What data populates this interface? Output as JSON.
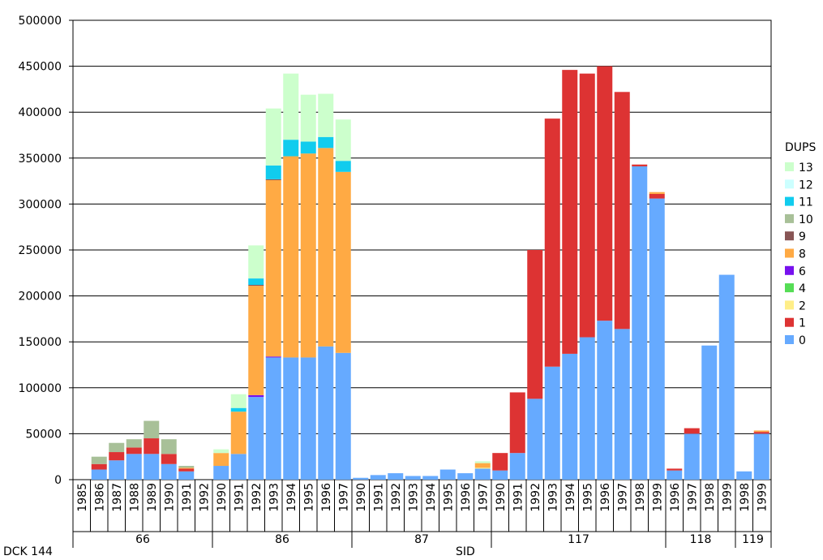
{
  "chart_data": {
    "type": "bar",
    "stacked": true,
    "ylim": [
      0,
      500000
    ],
    "yticks": [
      0,
      50000,
      100000,
      150000,
      200000,
      250000,
      300000,
      350000,
      400000,
      450000,
      500000
    ],
    "grid": true,
    "xlabel_left": "DCK 144",
    "xlabel_center": "SID",
    "legend_title": "DUPS",
    "legend_position": "right",
    "series": [
      {
        "name": "0",
        "color": "#66aaff"
      },
      {
        "name": "1",
        "color": "#dd3333"
      },
      {
        "name": "2",
        "color": "#ffee88"
      },
      {
        "name": "4",
        "color": "#55dd55"
      },
      {
        "name": "6",
        "color": "#7711ee"
      },
      {
        "name": "8",
        "color": "#ffaa44"
      },
      {
        "name": "9",
        "color": "#885555"
      },
      {
        "name": "10",
        "color": "#a8c098"
      },
      {
        "name": "11",
        "color": "#11ccee"
      },
      {
        "name": "12",
        "color": "#ccffff"
      },
      {
        "name": "13",
        "color": "#ccffcc"
      }
    ],
    "groups": [
      {
        "label": "66",
        "bars": [
          {
            "year": "1985",
            "values": {}
          },
          {
            "year": "1986",
            "values": {
              "0": 11000,
              "1": 6000,
              "10": 8000
            }
          },
          {
            "year": "1987",
            "values": {
              "0": 21000,
              "1": 9000,
              "10": 10000
            }
          },
          {
            "year": "1988",
            "values": {
              "0": 28000,
              "1": 7000,
              "10": 9000
            }
          },
          {
            "year": "1989",
            "values": {
              "0": 28000,
              "1": 17000,
              "10": 19000
            }
          },
          {
            "year": "1990",
            "values": {
              "0": 17000,
              "1": 11000,
              "10": 16000
            }
          },
          {
            "year": "1991",
            "values": {
              "0": 9000,
              "1": 3000,
              "8": 1000,
              "10": 2000
            }
          },
          {
            "year": "1992",
            "values": {}
          }
        ]
      },
      {
        "label": "86",
        "bars": [
          {
            "year": "1990",
            "values": {
              "0": 15000,
              "8": 14000,
              "13": 4000
            }
          },
          {
            "year": "1991",
            "values": {
              "0": 28000,
              "8": 46000,
              "11": 4000,
              "13": 15000
            }
          },
          {
            "year": "1992",
            "values": {
              "0": 90000,
              "6": 2000,
              "9": 1000,
              "8": 119000,
              "11": 7000,
              "13": 36000
            }
          },
          {
            "year": "1993",
            "values": {
              "0": 133000,
              "6": 1000,
              "9": 1000,
              "8": 192000,
              "11": 15000,
              "13": 62000
            }
          },
          {
            "year": "1994",
            "values": {
              "0": 133000,
              "8": 219000,
              "11": 18000,
              "13": 72000
            }
          },
          {
            "year": "1995",
            "values": {
              "0": 133000,
              "8": 222000,
              "11": 13000,
              "13": 51000
            }
          },
          {
            "year": "1996",
            "values": {
              "0": 145000,
              "8": 216000,
              "11": 12000,
              "13": 47000
            }
          },
          {
            "year": "1997",
            "values": {
              "0": 138000,
              "8": 197000,
              "11": 12000,
              "13": 45000
            }
          }
        ]
      },
      {
        "label": "87",
        "bars": [
          {
            "year": "1990",
            "values": {
              "0": 2000
            }
          },
          {
            "year": "1991",
            "values": {
              "0": 5000
            }
          },
          {
            "year": "1992",
            "values": {
              "0": 7000
            }
          },
          {
            "year": "1993",
            "values": {
              "0": 4000
            }
          },
          {
            "year": "1994",
            "values": {
              "0": 4000
            }
          },
          {
            "year": "1995",
            "values": {
              "0": 11000
            }
          },
          {
            "year": "1996",
            "values": {
              "0": 7000
            }
          },
          {
            "year": "1997",
            "values": {
              "0": 12000,
              "8": 5000,
              "2": 1000,
              "13": 2000
            }
          }
        ]
      },
      {
        "label": "117",
        "bars": [
          {
            "year": "1990",
            "values": {
              "0": 10000,
              "1": 19000
            }
          },
          {
            "year": "1991",
            "values": {
              "0": 29000,
              "1": 66000
            }
          },
          {
            "year": "1992",
            "values": {
              "0": 88000,
              "1": 162000
            }
          },
          {
            "year": "1993",
            "values": {
              "0": 123000,
              "1": 270000
            }
          },
          {
            "year": "1994",
            "values": {
              "0": 137000,
              "1": 309000
            }
          },
          {
            "year": "1995",
            "values": {
              "0": 155000,
              "1": 287000
            }
          },
          {
            "year": "1996",
            "values": {
              "0": 173000,
              "1": 277000
            }
          },
          {
            "year": "1997",
            "values": {
              "0": 164000,
              "1": 258000
            }
          },
          {
            "year": "1998",
            "values": {
              "0": 341000,
              "1": 2000
            }
          },
          {
            "year": "1999",
            "values": {
              "0": 306000,
              "1": 5000,
              "8": 2000
            }
          }
        ]
      },
      {
        "label": "118",
        "bars": [
          {
            "year": "1996",
            "values": {
              "0": 10000,
              "1": 2000
            }
          },
          {
            "year": "1997",
            "values": {
              "0": 50000,
              "1": 6000
            }
          },
          {
            "year": "1998",
            "values": {
              "0": 146000
            }
          },
          {
            "year": "1999",
            "values": {
              "0": 223000
            }
          }
        ]
      },
      {
        "label": "119",
        "bars": [
          {
            "year": "1998",
            "values": {
              "0": 9000
            }
          },
          {
            "year": "1999",
            "values": {
              "0": 50000,
              "1": 2000,
              "8": 1500
            }
          }
        ]
      }
    ]
  }
}
